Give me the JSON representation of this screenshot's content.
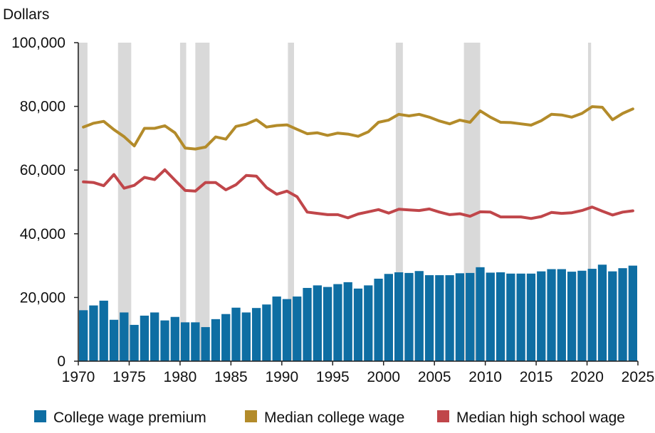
{
  "colors": {
    "premium": "#0e6ea3",
    "college": "#b38b2a",
    "highschool": "#c0464a",
    "recession": "#d9d9d9",
    "axis": "#222222"
  },
  "chart_data": {
    "type": "bar",
    "ylabel": "Dollars",
    "ylim": [
      0,
      100000
    ],
    "y_ticks": [
      0,
      20000,
      40000,
      60000,
      80000,
      100000
    ],
    "y_tick_labels": [
      "0",
      "20,000",
      "40,000",
      "60,000",
      "80,000",
      "100,000"
    ],
    "xlim": [
      1970,
      2025
    ],
    "x_ticks": [
      1970,
      1975,
      1980,
      1985,
      1990,
      1995,
      2000,
      2005,
      2010,
      2015,
      2020,
      2025
    ],
    "x_tick_labels": [
      "1970",
      "1975",
      "1980",
      "1985",
      "1990",
      "1995",
      "2000",
      "2005",
      "2010",
      "2015",
      "2020",
      "2025"
    ],
    "grid": false,
    "legend_placement": "bottom",
    "recessions": [
      [
        1969.9,
        1970.9
      ],
      [
        1973.9,
        1975.2
      ],
      [
        1980.0,
        1980.6
      ],
      [
        1981.5,
        1982.9
      ],
      [
        1990.6,
        1991.2
      ],
      [
        2001.2,
        2001.9
      ],
      [
        2007.9,
        2009.5
      ],
      [
        2020.1,
        2020.4
      ]
    ],
    "x": [
      1970,
      1971,
      1972,
      1973,
      1974,
      1975,
      1976,
      1977,
      1978,
      1979,
      1980,
      1981,
      1982,
      1983,
      1984,
      1985,
      1986,
      1987,
      1988,
      1989,
      1990,
      1991,
      1992,
      1993,
      1994,
      1995,
      1996,
      1997,
      1998,
      1999,
      2000,
      2001,
      2002,
      2003,
      2004,
      2005,
      2006,
      2007,
      2008,
      2009,
      2010,
      2011,
      2012,
      2013,
      2014,
      2015,
      2016,
      2017,
      2018,
      2019,
      2020,
      2021,
      2022,
      2023,
      2024
    ],
    "series": [
      {
        "name": "College wage premium",
        "type": "bar",
        "values": [
          16000,
          17500,
          19000,
          13000,
          15300,
          11400,
          14300,
          15300,
          12800,
          13900,
          12200,
          12200,
          10700,
          13200,
          14800,
          16800,
          15300,
          16700,
          17800,
          20300,
          19500,
          20300,
          23000,
          23800,
          23300,
          24200,
          24800,
          22800,
          23800,
          25900,
          27400,
          27900,
          27700,
          28300,
          27000,
          27000,
          27000,
          27600,
          27700,
          29500,
          27800,
          27900,
          27500,
          27500,
          27500,
          28200,
          28900,
          28900,
          28100,
          28400,
          29000,
          30300,
          28200,
          29200,
          30000
        ]
      },
      {
        "name": "Median college wage",
        "type": "line",
        "values": [
          73500,
          74700,
          75300,
          72700,
          70500,
          67600,
          73100,
          73100,
          73900,
          71700,
          66900,
          66600,
          67200,
          70400,
          69700,
          73700,
          74400,
          75800,
          73500,
          74000,
          74200,
          72800,
          71400,
          71700,
          70900,
          71600,
          71300,
          70600,
          72000,
          75000,
          75700,
          77500,
          77000,
          77500,
          76600,
          75400,
          74500,
          75700,
          75000,
          78600,
          76600,
          75000,
          74900,
          74500,
          74100,
          75500,
          77500,
          77300,
          76600,
          77800,
          79900,
          79700,
          75800,
          77800,
          79200
        ]
      },
      {
        "name": "Median high school wage",
        "type": "line",
        "values": [
          56300,
          56100,
          55100,
          58600,
          54300,
          55200,
          57700,
          57000,
          60100,
          56800,
          53600,
          53400,
          56100,
          56100,
          53800,
          55400,
          58300,
          58100,
          54500,
          52400,
          53400,
          51600,
          46800,
          46400,
          46000,
          46000,
          45000,
          46200,
          46900,
          47600,
          46500,
          47700,
          47500,
          47300,
          47800,
          46800,
          46000,
          46300,
          45500,
          46900,
          46800,
          45300,
          45300,
          45300,
          44800,
          45400,
          46700,
          46400,
          46600,
          47300,
          48400,
          47100,
          45900,
          46800,
          47200
        ]
      }
    ]
  }
}
